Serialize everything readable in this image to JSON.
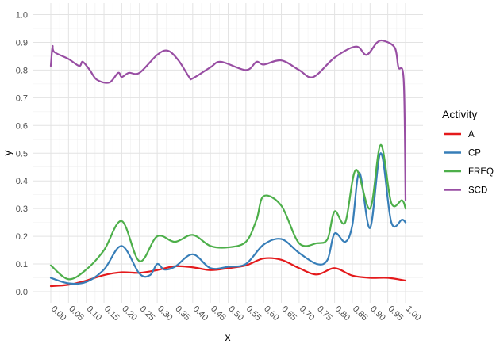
{
  "chart_data": {
    "type": "line",
    "xlabel": "x",
    "ylabel": "y",
    "xlim": [
      0,
      1
    ],
    "ylim": [
      0,
      1
    ],
    "x_ticks": [
      "0.00",
      "0.05",
      "0.10",
      "0.15",
      "0.20",
      "0.25",
      "0.30",
      "0.35",
      "0.40",
      "0.45",
      "0.50",
      "0.55",
      "0.60",
      "0.65",
      "0.70",
      "0.75",
      "0.80",
      "0.85",
      "0.90",
      "0.95",
      "1.00"
    ],
    "y_ticks": [
      "0.0",
      "0.1",
      "0.2",
      "0.3",
      "0.4",
      "0.5",
      "0.6",
      "0.7",
      "0.8",
      "0.9",
      "1.0"
    ],
    "grid": true,
    "legend": {
      "title": "Activity",
      "position": "right"
    },
    "series": [
      {
        "name": "A",
        "color": "#E41A1C",
        "points": [
          [
            0.0,
            0.02
          ],
          [
            0.05,
            0.025
          ],
          [
            0.1,
            0.04
          ],
          [
            0.15,
            0.06
          ],
          [
            0.2,
            0.07
          ],
          [
            0.25,
            0.068
          ],
          [
            0.3,
            0.078
          ],
          [
            0.35,
            0.092
          ],
          [
            0.4,
            0.088
          ],
          [
            0.45,
            0.078
          ],
          [
            0.5,
            0.085
          ],
          [
            0.55,
            0.095
          ],
          [
            0.6,
            0.12
          ],
          [
            0.65,
            0.115
          ],
          [
            0.7,
            0.085
          ],
          [
            0.75,
            0.062
          ],
          [
            0.8,
            0.085
          ],
          [
            0.85,
            0.058
          ],
          [
            0.9,
            0.05
          ],
          [
            0.95,
            0.05
          ],
          [
            1.0,
            0.04
          ]
        ]
      },
      {
        "name": "CP",
        "color": "#377EB8",
        "points": [
          [
            0.0,
            0.05
          ],
          [
            0.05,
            0.03
          ],
          [
            0.1,
            0.035
          ],
          [
            0.15,
            0.08
          ],
          [
            0.2,
            0.165
          ],
          [
            0.25,
            0.065
          ],
          [
            0.28,
            0.06
          ],
          [
            0.3,
            0.1
          ],
          [
            0.32,
            0.08
          ],
          [
            0.35,
            0.09
          ],
          [
            0.4,
            0.135
          ],
          [
            0.45,
            0.085
          ],
          [
            0.5,
            0.09
          ],
          [
            0.55,
            0.1
          ],
          [
            0.6,
            0.17
          ],
          [
            0.65,
            0.19
          ],
          [
            0.7,
            0.14
          ],
          [
            0.75,
            0.1
          ],
          [
            0.78,
            0.115
          ],
          [
            0.8,
            0.21
          ],
          [
            0.83,
            0.18
          ],
          [
            0.85,
            0.24
          ],
          [
            0.87,
            0.43
          ],
          [
            0.9,
            0.23
          ],
          [
            0.93,
            0.5
          ],
          [
            0.96,
            0.25
          ],
          [
            0.99,
            0.26
          ],
          [
            1.0,
            0.25
          ]
        ]
      },
      {
        "name": "FREQ",
        "color": "#4DAF4A",
        "points": [
          [
            0.0,
            0.095
          ],
          [
            0.05,
            0.045
          ],
          [
            0.1,
            0.08
          ],
          [
            0.15,
            0.15
          ],
          [
            0.2,
            0.255
          ],
          [
            0.25,
            0.11
          ],
          [
            0.3,
            0.2
          ],
          [
            0.35,
            0.18
          ],
          [
            0.4,
            0.205
          ],
          [
            0.45,
            0.165
          ],
          [
            0.5,
            0.16
          ],
          [
            0.55,
            0.18
          ],
          [
            0.58,
            0.26
          ],
          [
            0.6,
            0.345
          ],
          [
            0.65,
            0.31
          ],
          [
            0.7,
            0.175
          ],
          [
            0.75,
            0.175
          ],
          [
            0.78,
            0.19
          ],
          [
            0.8,
            0.29
          ],
          [
            0.83,
            0.25
          ],
          [
            0.86,
            0.44
          ],
          [
            0.9,
            0.3
          ],
          [
            0.93,
            0.53
          ],
          [
            0.96,
            0.32
          ],
          [
            0.99,
            0.33
          ],
          [
            1.0,
            0.3
          ]
        ]
      },
      {
        "name": "SCD",
        "color": "#984EA3",
        "points": [
          [
            0.0,
            0.815
          ],
          [
            0.005,
            0.885
          ],
          [
            0.01,
            0.865
          ],
          [
            0.05,
            0.84
          ],
          [
            0.08,
            0.815
          ],
          [
            0.09,
            0.83
          ],
          [
            0.11,
            0.8
          ],
          [
            0.13,
            0.765
          ],
          [
            0.165,
            0.755
          ],
          [
            0.19,
            0.79
          ],
          [
            0.2,
            0.775
          ],
          [
            0.22,
            0.79
          ],
          [
            0.25,
            0.79
          ],
          [
            0.3,
            0.855
          ],
          [
            0.33,
            0.87
          ],
          [
            0.36,
            0.835
          ],
          [
            0.39,
            0.775
          ],
          [
            0.4,
            0.77
          ],
          [
            0.45,
            0.81
          ],
          [
            0.48,
            0.83
          ],
          [
            0.55,
            0.8
          ],
          [
            0.58,
            0.83
          ],
          [
            0.6,
            0.82
          ],
          [
            0.65,
            0.835
          ],
          [
            0.7,
            0.8
          ],
          [
            0.74,
            0.775
          ],
          [
            0.8,
            0.845
          ],
          [
            0.86,
            0.885
          ],
          [
            0.89,
            0.855
          ],
          [
            0.92,
            0.9
          ],
          [
            0.94,
            0.905
          ],
          [
            0.97,
            0.88
          ],
          [
            0.98,
            0.81
          ],
          [
            0.995,
            0.76
          ],
          [
            1.0,
            0.33
          ]
        ]
      }
    ]
  }
}
